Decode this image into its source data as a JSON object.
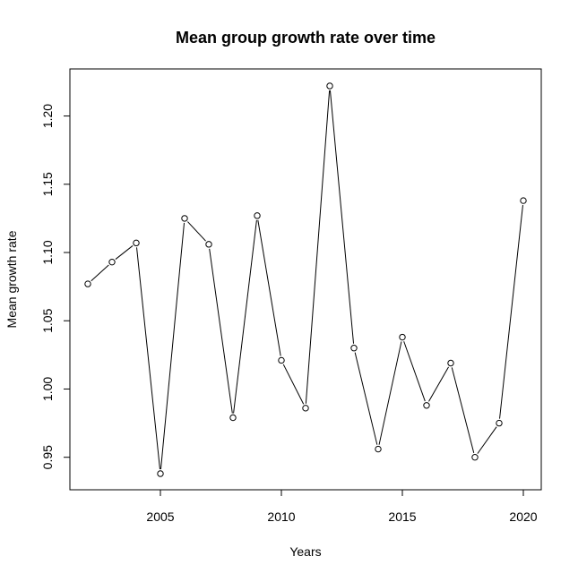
{
  "chart_data": {
    "type": "line",
    "title": "Mean group growth rate over time",
    "xlabel": "Years",
    "ylabel": "Mean growth rate",
    "xlim": [
      2002,
      2020
    ],
    "ylim": [
      0.938,
      1.222
    ],
    "x_ticks": [
      2005,
      2010,
      2015,
      2020
    ],
    "y_ticks": [
      0.95,
      1.0,
      1.05,
      1.1,
      1.15,
      1.2
    ],
    "y_tick_labels": [
      "0.95",
      "1.00",
      "1.05",
      "1.10",
      "1.15",
      "1.20"
    ],
    "grid": false,
    "markers": "open-circle",
    "series": [
      {
        "x": [
          2002,
          2003,
          2004,
          2005,
          2006,
          2007,
          2008,
          2009,
          2010,
          2011,
          2012,
          2013,
          2014,
          2015,
          2016,
          2017,
          2018,
          2019,
          2020
        ],
        "values": [
          1.077,
          1.093,
          1.107,
          0.938,
          1.125,
          1.106,
          0.979,
          1.127,
          1.021,
          0.986,
          1.222,
          1.03,
          0.956,
          1.038,
          0.988,
          1.019,
          0.95,
          0.975,
          1.138
        ],
        "color": "#000000"
      }
    ]
  }
}
